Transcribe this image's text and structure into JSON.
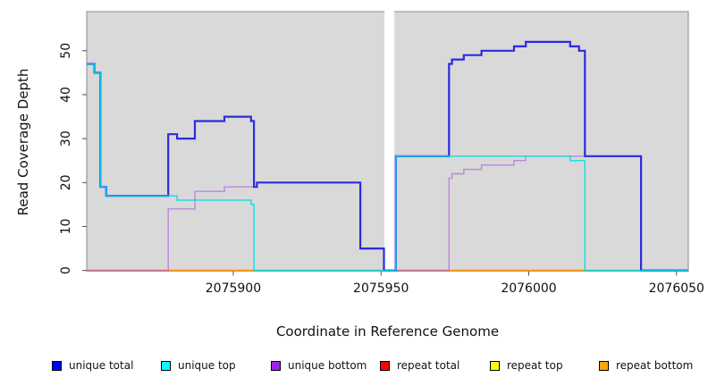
{
  "figure": {
    "kind": "read-coverage-step-plot",
    "background_color": "#ffffff",
    "plot_background_color": "#d9d9d9",
    "plot_border_color": "#8c8c8c",
    "tick_color": "#4d4d4d",
    "text_color": "#111111",
    "no_data_gap_color": "#ffffff"
  },
  "chart_data": {
    "type": "line",
    "subtype": "step-after",
    "title": "",
    "xlabel": "Coordinate in Reference Genome",
    "ylabel": "Read Coverage Depth",
    "x_range": [
      2075850.4,
      2076054.0
    ],
    "y_range": [
      0,
      58.9
    ],
    "x_ticks": [
      2075900,
      2075950,
      2076000,
      2076050
    ],
    "x_tick_labels": [
      "2075900",
      "2075950",
      "2076000",
      "2076050"
    ],
    "y_ticks": [
      0,
      10,
      20,
      30,
      40,
      50
    ],
    "y_tick_labels": [
      "0",
      "10",
      "20",
      "30",
      "40",
      "50"
    ],
    "grid": false,
    "legend_position": "bottom",
    "no_data_gap_x": [
      2075951.15,
      2075954.5
    ],
    "draw_order": [
      "repeat_top",
      "repeat_total",
      "repeat_bottom",
      "unique_bottom",
      "unique_total",
      "unique_top"
    ],
    "series": [
      {
        "key": "unique_total",
        "label": "unique total",
        "legend_color": "#0000ff",
        "line_color": "#2b2be0",
        "line_width": 2.2,
        "opacity": 1,
        "end_x": 2076054,
        "points": [
          [
            2075850.4,
            47
          ],
          [
            2075853,
            45
          ],
          [
            2075855,
            19
          ],
          [
            2075857,
            17
          ],
          [
            2075878,
            31
          ],
          [
            2075881,
            30
          ],
          [
            2075887,
            34
          ],
          [
            2075897,
            35
          ],
          [
            2075906,
            34
          ],
          [
            2075907,
            19
          ],
          [
            2075908,
            20
          ],
          [
            2075943,
            5
          ],
          [
            2075951,
            0
          ],
          [
            2075955,
            26
          ],
          [
            2075973,
            47
          ],
          [
            2075974,
            48
          ],
          [
            2075978,
            49
          ],
          [
            2075984,
            50
          ],
          [
            2075995,
            51
          ],
          [
            2075999,
            52
          ],
          [
            2076014,
            51
          ],
          [
            2076017,
            50
          ],
          [
            2076019,
            26
          ],
          [
            2076038,
            0
          ]
        ]
      },
      {
        "key": "unique_top",
        "label": "unique top",
        "legend_color": "#00ffff",
        "line_color": "#00dde8",
        "line_width": 1.5,
        "opacity": 0.88,
        "end_x": 2076054,
        "points": [
          [
            2075850.4,
            47
          ],
          [
            2075853,
            45
          ],
          [
            2075855,
            19
          ],
          [
            2075857,
            17
          ],
          [
            2075881,
            16
          ],
          [
            2075906,
            15
          ],
          [
            2075907,
            0
          ],
          [
            2075955,
            26
          ],
          [
            2076014,
            25
          ],
          [
            2076019,
            0
          ]
        ]
      },
      {
        "key": "unique_bottom",
        "label": "unique bottom",
        "legend_color": "#a020f0",
        "line_color": "#a855dd",
        "line_width": 1.4,
        "opacity": 0.62,
        "end_x": 2076054,
        "points": [
          [
            2075850.4,
            0
          ],
          [
            2075878,
            14
          ],
          [
            2075887,
            18
          ],
          [
            2075897,
            19
          ],
          [
            2075908,
            20
          ],
          [
            2075943,
            5
          ],
          [
            2075951,
            0
          ],
          [
            2075973,
            21
          ],
          [
            2075974,
            22
          ],
          [
            2075978,
            23
          ],
          [
            2075984,
            24
          ],
          [
            2075995,
            25
          ],
          [
            2075999,
            26
          ],
          [
            2076038,
            0
          ]
        ]
      },
      {
        "key": "repeat_total",
        "label": "repeat total",
        "legend_color": "#ff0000",
        "line_color": "#cc2255",
        "line_width": 1.5,
        "opacity": 0.75,
        "end_x": 2076054,
        "points": [
          [
            2075850.4,
            0
          ]
        ]
      },
      {
        "key": "repeat_top",
        "label": "repeat top",
        "legend_color": "#ffff00",
        "line_color": "#e8e800",
        "line_width": 1.4,
        "opacity": 1,
        "end_x": 2076054,
        "points": [
          [
            2075850.4,
            0
          ]
        ]
      },
      {
        "key": "repeat_bottom",
        "label": "repeat bottom",
        "legend_color": "#ffa500",
        "line_color": "#ff9912",
        "line_width": 1.8,
        "opacity": 1,
        "end_x": 2076054,
        "points": [
          [
            2075850.4,
            0
          ]
        ]
      }
    ]
  }
}
